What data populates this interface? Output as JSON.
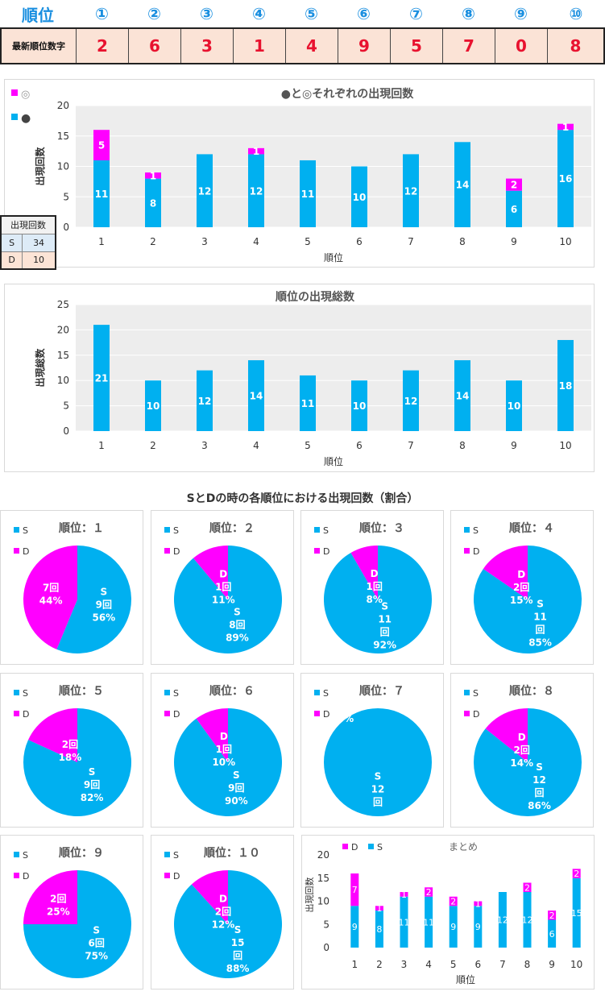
{
  "header": {
    "rank_label": "順位",
    "positions": [
      "①",
      "②",
      "③",
      "④",
      "⑤",
      "⑥",
      "⑦",
      "⑧",
      "⑨",
      "⑩"
    ]
  },
  "latest": {
    "label": "最新順位数字",
    "digits": [
      "2",
      "6",
      "3",
      "1",
      "4",
      "9",
      "5",
      "7",
      "0",
      "8"
    ]
  },
  "colors": {
    "cyan": "#00b0f0",
    "magenta": "#ff00ff",
    "digit_red": "#e8122f",
    "header_blue": "#1a8fe0",
    "plot_bg": "#ededed"
  },
  "sd_table": {
    "header": "出現回数",
    "rows": [
      {
        "k": "S",
        "v": "34"
      },
      {
        "k": "D",
        "v": "10"
      }
    ]
  },
  "section_title": "SとDの時の各順位における出現回数（割合）",
  "chart_data": [
    {
      "id": "chart1",
      "type": "bar",
      "stacked": true,
      "title": "●と◎それぞれの出現回数",
      "xlabel": "順位",
      "ylabel": "出現回数",
      "ylim": [
        0,
        20
      ],
      "yticks": [
        0,
        5,
        10,
        15,
        20
      ],
      "categories": [
        "1",
        "2",
        "3",
        "4",
        "5",
        "6",
        "7",
        "8",
        "9",
        "10"
      ],
      "legend": [
        "◎",
        "●"
      ],
      "legend_position": "top-left",
      "series": [
        {
          "name": "●",
          "color": "#00b0f0",
          "values": [
            11,
            8,
            12,
            12,
            11,
            10,
            12,
            14,
            6,
            16
          ],
          "labels": [
            "11",
            "8",
            "12",
            "12",
            "11",
            "10",
            "12",
            "14",
            "6",
            "16"
          ]
        },
        {
          "name": "◎",
          "color": "#ff00ff",
          "values": [
            5,
            1,
            0,
            1,
            0,
            0,
            0,
            0,
            2,
            1
          ],
          "labels": [
            "5",
            "1",
            "",
            "1",
            "",
            "",
            "",
            "",
            "2",
            "1"
          ]
        }
      ]
    },
    {
      "id": "chart2",
      "type": "bar",
      "title": "順位の出現総数",
      "xlabel": "順位",
      "ylabel": "出現総数",
      "ylim": [
        0,
        25
      ],
      "yticks": [
        0,
        5,
        10,
        15,
        20,
        25
      ],
      "categories": [
        "1",
        "2",
        "3",
        "4",
        "5",
        "6",
        "7",
        "8",
        "9",
        "10"
      ],
      "series": [
        {
          "color": "#00b0f0",
          "values": [
            21,
            10,
            12,
            14,
            11,
            10,
            12,
            14,
            10,
            18
          ],
          "labels": [
            "21",
            "10",
            "12",
            "14",
            "11",
            "10",
            "12",
            "14",
            "10",
            "18"
          ]
        }
      ]
    },
    {
      "id": "pies",
      "type": "pie",
      "legend": [
        "S",
        "D"
      ],
      "pies": [
        {
          "title": "順位：１",
          "S": 9,
          "D": 7,
          "s_lines": [
            "S",
            "9回",
            "56%"
          ],
          "d_lines": [
            "7回",
            "44%"
          ]
        },
        {
          "title": "順位：２",
          "S": 8,
          "D": 1,
          "s_lines": [
            "S",
            "8回",
            "89%"
          ],
          "d_lines": [
            "D",
            "1回",
            "11%"
          ]
        },
        {
          "title": "順位：３",
          "S": 11,
          "D": 1,
          "s_lines": [
            "S",
            "11",
            "回",
            "92%"
          ],
          "d_lines": [
            "D",
            "1回",
            "8%"
          ]
        },
        {
          "title": "順位：４",
          "S": 11,
          "D": 2,
          "s_lines": [
            "S",
            "11",
            "回",
            "85%"
          ],
          "d_lines": [
            "D",
            "2回",
            "15%"
          ]
        },
        {
          "title": "順位：５",
          "S": 9,
          "D": 2,
          "s_lines": [
            "S",
            "9回",
            "82%"
          ],
          "d_lines": [
            "2回",
            "18%"
          ]
        },
        {
          "title": "順位：６",
          "S": 9,
          "D": 1,
          "s_lines": [
            "S",
            "9回",
            "90%"
          ],
          "d_lines": [
            "D",
            "1回",
            "10%"
          ]
        },
        {
          "title": "順位：７",
          "S": 12,
          "D": 0,
          "s_lines": [
            "S",
            "12",
            "回"
          ],
          "d_lines": [
            "0%"
          ]
        },
        {
          "title": "順位：８",
          "S": 12,
          "D": 2,
          "s_lines": [
            "S",
            "12",
            "回",
            "86%"
          ],
          "d_lines": [
            "D",
            "2回",
            "14%"
          ]
        },
        {
          "title": "順位：９",
          "S": 6,
          "D": 2,
          "s_lines": [
            "S",
            "6回",
            "75%"
          ],
          "d_lines": [
            "2回",
            "25%"
          ]
        },
        {
          "title": "順位：１０",
          "S": 15,
          "D": 2,
          "s_lines": [
            "S",
            "15",
            "回",
            "88%"
          ],
          "d_lines": [
            "D",
            "2回",
            "12%"
          ]
        }
      ]
    },
    {
      "id": "summary",
      "type": "bar",
      "stacked": true,
      "title": "まとめ",
      "xlabel": "順位",
      "ylabel": "出現回数",
      "ylim": [
        0,
        20
      ],
      "yticks": [
        0,
        5,
        10,
        15,
        20
      ],
      "categories": [
        "1",
        "2",
        "3",
        "4",
        "5",
        "6",
        "7",
        "8",
        "9",
        "10"
      ],
      "legend": [
        "D",
        "S"
      ],
      "series": [
        {
          "name": "S",
          "color": "#00b0f0",
          "values": [
            9,
            8,
            11,
            11,
            9,
            9,
            12,
            12,
            6,
            15
          ],
          "labels": [
            "9",
            "8",
            "11",
            "11",
            "9",
            "9",
            "12",
            "12",
            "6",
            "15"
          ]
        },
        {
          "name": "D",
          "color": "#ff00ff",
          "values": [
            7,
            1,
            1,
            2,
            2,
            1,
            0,
            2,
            2,
            2
          ],
          "labels": [
            "7",
            "1",
            "1",
            "2",
            "2",
            "1",
            "0",
            "2",
            "2",
            "2"
          ]
        }
      ]
    }
  ]
}
